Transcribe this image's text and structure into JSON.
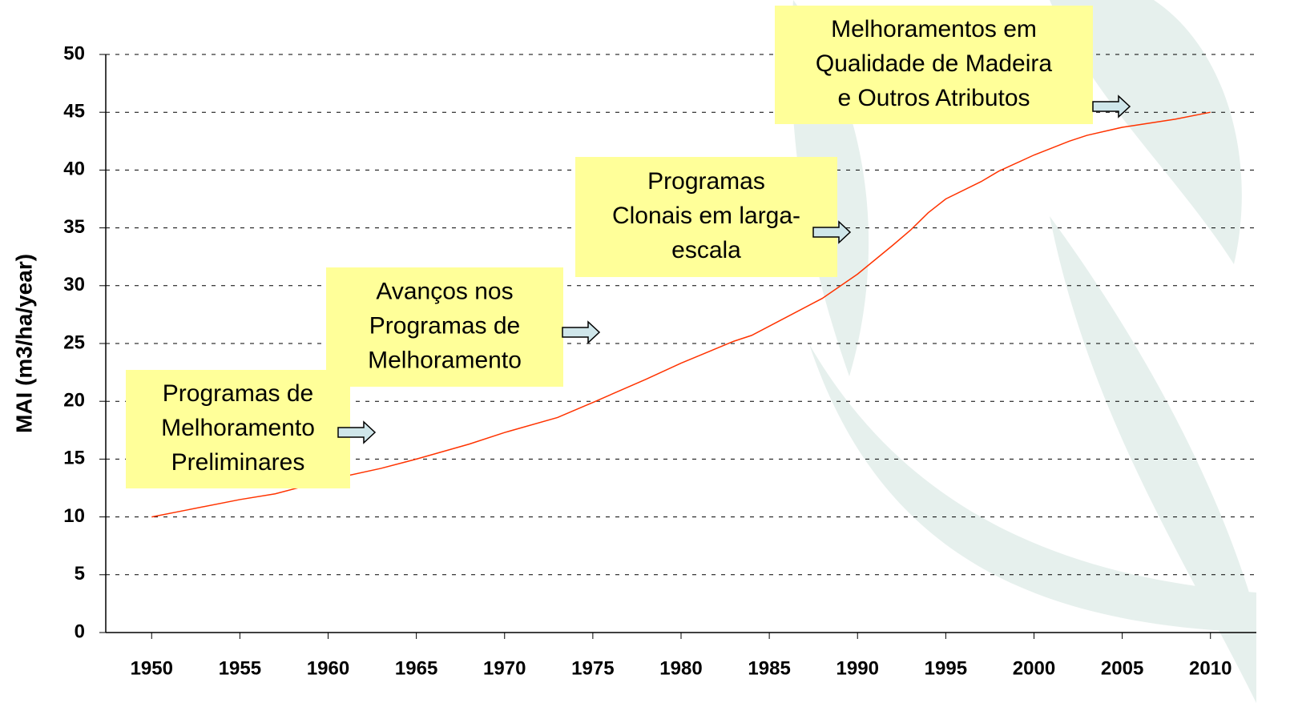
{
  "chart_data": {
    "type": "line",
    "y_label": "MAI (m3/ha/year)",
    "x": [
      1950,
      1952,
      1955,
      1957,
      1960,
      1963,
      1965,
      1968,
      1970,
      1973,
      1975,
      1978,
      1980,
      1983,
      1984,
      1986,
      1988,
      1990,
      1992,
      1993,
      1994,
      1995,
      1997,
      1998,
      2000,
      2002,
      2003,
      2005,
      2008,
      2010
    ],
    "series": [
      {
        "color": "#ff3300",
        "values": [
          10,
          10.6,
          11.5,
          12.0,
          13.2,
          14.2,
          15.0,
          16.3,
          17.3,
          18.6,
          19.9,
          21.9,
          23.3,
          25.2,
          25.7,
          27.3,
          28.9,
          31.0,
          33.5,
          34.8,
          36.3,
          37.5,
          39.0,
          39.9,
          41.3,
          42.5,
          43.0,
          43.7,
          44.4,
          45.0
        ]
      }
    ],
    "xlim": [
      1947.4,
      2012.6
    ],
    "xticks": [
      1950,
      1955,
      1960,
      1965,
      1970,
      1975,
      1980,
      1985,
      1990,
      1995,
      2000,
      2005,
      2010
    ],
    "ylim": [
      0,
      50
    ],
    "yticks": [
      0,
      5,
      10,
      15,
      20,
      25,
      30,
      35,
      40,
      45,
      50
    ],
    "grid": true,
    "annotations": [
      [
        "Programas de",
        "Melhoramento",
        "Preliminares"
      ],
      [
        "Avanços nos",
        "Programas de",
        "Melhoramento"
      ],
      [
        "Programas",
        "Clonais em larga-",
        "escala"
      ],
      [
        "Melhoramentos em",
        "Qualidade de Madeira",
        "e Outros Atributos"
      ]
    ]
  }
}
